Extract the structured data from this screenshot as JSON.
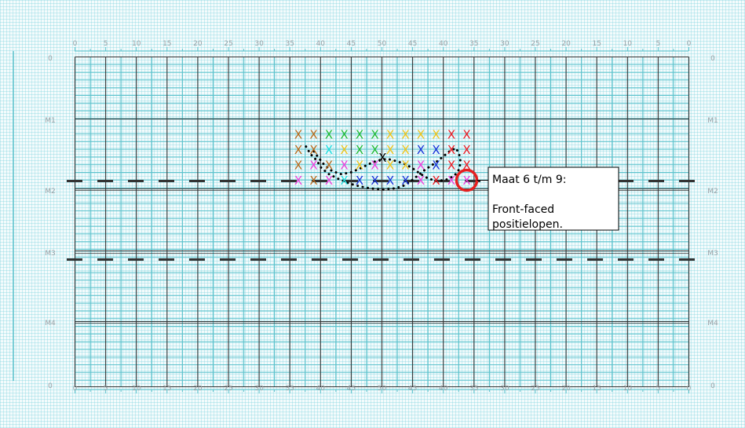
{
  "top_scale": [
    "0",
    "5",
    "10",
    "15",
    "20",
    "25",
    "30",
    "35",
    "40",
    "45",
    "50",
    "45",
    "40",
    "35",
    "30",
    "25",
    "20",
    "15",
    "10",
    "5",
    "0"
  ],
  "bottom_scale": [
    "0",
    "5",
    "10",
    "15",
    "20",
    "25",
    "30",
    "35",
    "40",
    "45",
    "50",
    "45",
    "40",
    "35",
    "30",
    "25",
    "20",
    "15",
    "10",
    "5",
    "0"
  ],
  "row_labels": [
    "0",
    "M1",
    "M2",
    "M3",
    "M4",
    "0"
  ],
  "marker_glyph": "X",
  "colors": {
    "brown": "#b86a1c",
    "green": "#22bb33",
    "yellow": "#f0c419",
    "cyan": "#1ee0e0",
    "blue": "#1630d8",
    "magenta": "#ee3ddc",
    "red": "#ee1c24",
    "black": "#000000",
    "grid_dark": "#333333",
    "grid_light": "#5cc2cc",
    "highlight": "#e62020"
  },
  "markers": [
    {
      "col": 7,
      "row": 1,
      "color": "brown"
    },
    {
      "col": 8,
      "row": 1,
      "color": "brown"
    },
    {
      "col": 9,
      "row": 1,
      "color": "green"
    },
    {
      "col": 10,
      "row": 1,
      "color": "green"
    },
    {
      "col": 11,
      "row": 1,
      "color": "green"
    },
    {
      "col": 12,
      "row": 1,
      "color": "green"
    },
    {
      "col": 13,
      "row": 1,
      "color": "yellow"
    },
    {
      "col": 14,
      "row": 1,
      "color": "yellow"
    },
    {
      "col": 15,
      "row": 1,
      "color": "yellow"
    },
    {
      "col": 16,
      "row": 1,
      "color": "yellow"
    },
    {
      "col": 17,
      "row": 1,
      "color": "red"
    },
    {
      "col": 18,
      "row": 1,
      "color": "red"
    },
    {
      "col": 7,
      "row": 2,
      "color": "brown"
    },
    {
      "col": 8,
      "row": 2,
      "color": "brown"
    },
    {
      "col": 9,
      "row": 2,
      "color": "cyan"
    },
    {
      "col": 10,
      "row": 2,
      "color": "yellow"
    },
    {
      "col": 11,
      "row": 2,
      "color": "green"
    },
    {
      "col": 12,
      "row": 2,
      "color": "green"
    },
    {
      "col": 13,
      "row": 2,
      "color": "yellow"
    },
    {
      "col": 14,
      "row": 2,
      "color": "yellow"
    },
    {
      "col": 15,
      "row": 2,
      "color": "blue"
    },
    {
      "col": 16,
      "row": 2,
      "color": "blue"
    },
    {
      "col": 17,
      "row": 2,
      "color": "red"
    },
    {
      "col": 18,
      "row": 2,
      "color": "red"
    },
    {
      "col": 7,
      "row": 3,
      "color": "brown"
    },
    {
      "col": 8,
      "row": 3,
      "color": "magenta"
    },
    {
      "col": 9,
      "row": 3,
      "color": "brown"
    },
    {
      "col": 10,
      "row": 3,
      "color": "magenta"
    },
    {
      "col": 11,
      "row": 3,
      "color": "yellow"
    },
    {
      "col": 12,
      "row": 3,
      "color": "magenta"
    },
    {
      "col": 13,
      "row": 3,
      "color": "yellow"
    },
    {
      "col": 14,
      "row": 3,
      "color": "yellow"
    },
    {
      "col": 15,
      "row": 3,
      "color": "magenta"
    },
    {
      "col": 16,
      "row": 3,
      "color": "blue"
    },
    {
      "col": 17,
      "row": 3,
      "color": "red"
    },
    {
      "col": 18,
      "row": 3,
      "color": "red"
    },
    {
      "col": 7,
      "row": 4,
      "color": "magenta"
    },
    {
      "col": 8,
      "row": 4,
      "color": "brown"
    },
    {
      "col": 9,
      "row": 4,
      "color": "magenta"
    },
    {
      "col": 10,
      "row": 4,
      "color": "cyan"
    },
    {
      "col": 11,
      "row": 4,
      "color": "blue"
    },
    {
      "col": 12,
      "row": 4,
      "color": "blue"
    },
    {
      "col": 13,
      "row": 4,
      "color": "blue"
    },
    {
      "col": 14,
      "row": 4,
      "color": "blue"
    },
    {
      "col": 15,
      "row": 4,
      "color": "magenta"
    },
    {
      "col": 16,
      "row": 4,
      "color": "red"
    },
    {
      "col": 17,
      "row": 4,
      "color": "magenta"
    },
    {
      "col": 18,
      "row": 4,
      "color": "magenta"
    },
    {
      "col": 12.5,
      "row": 2.5,
      "color": "black"
    }
  ],
  "dotted_path": [
    [
      7.5,
      1.8
    ],
    [
      7.8,
      2.3
    ],
    [
      8.2,
      2.7
    ],
    [
      8.5,
      3.2
    ],
    [
      9.0,
      3.6
    ],
    [
      9.6,
      3.9
    ],
    [
      10.3,
      4.2
    ],
    [
      11.0,
      4.4
    ],
    [
      11.8,
      4.55
    ],
    [
      12.5,
      4.6
    ],
    [
      13.2,
      4.55
    ],
    [
      13.8,
      4.4
    ],
    [
      14.3,
      4.1
    ],
    [
      14.8,
      3.7
    ],
    [
      15.3,
      3.3
    ],
    [
      15.9,
      2.9
    ],
    [
      16.4,
      2.5
    ],
    [
      16.9,
      2.1
    ],
    [
      17.3,
      1.9
    ],
    [
      17.5,
      2.3
    ],
    [
      17.6,
      2.8
    ],
    [
      17.5,
      3.3
    ],
    [
      17.2,
      3.7
    ],
    [
      16.7,
      3.95
    ],
    [
      16.1,
      4.05
    ],
    [
      15.5,
      3.9
    ],
    [
      15.0,
      3.6
    ],
    [
      14.5,
      3.25
    ],
    [
      14.0,
      2.95
    ],
    [
      13.4,
      2.75
    ],
    [
      12.8,
      2.6
    ],
    [
      12.2,
      2.7
    ],
    [
      11.6,
      2.95
    ],
    [
      11.0,
      3.25
    ],
    [
      10.4,
      3.5
    ],
    [
      9.8,
      3.6
    ],
    [
      9.2,
      3.4
    ],
    [
      8.7,
      3.0
    ],
    [
      8.3,
      2.5
    ],
    [
      8.0,
      2.1
    ]
  ],
  "highlight": {
    "col": 18,
    "row": 4
  },
  "note": {
    "line1": "Maat 6 t/m 9:",
    "line2": "",
    "line3": "Front-faced",
    "line4": "positielopen."
  }
}
